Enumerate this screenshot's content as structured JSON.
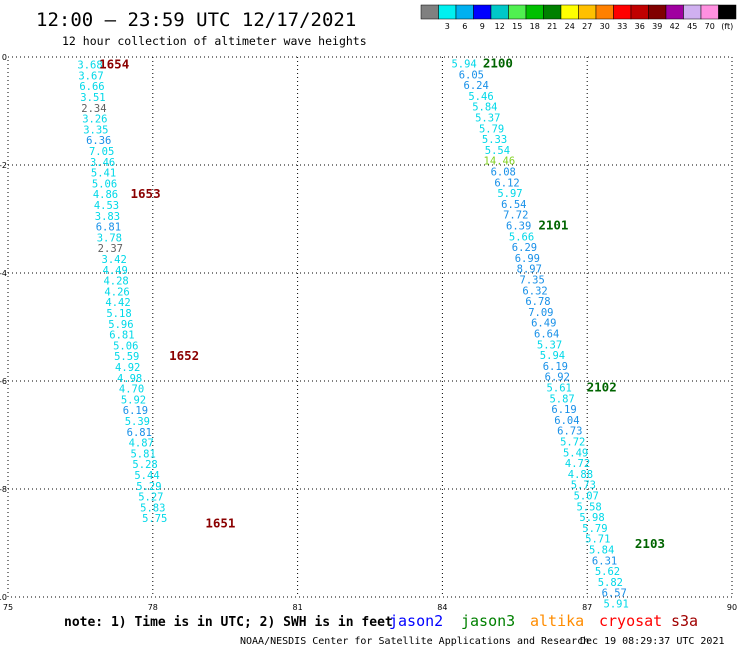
{
  "header": {
    "title": "12:00 – 23:59 UTC 12/17/2021",
    "subtitle": "12 hour collection of altimeter wave heights"
  },
  "colorbar": {
    "bins": [
      {
        "label": "",
        "color": "#808080"
      },
      {
        "label": "3",
        "color": "#00f0f0"
      },
      {
        "label": "6",
        "color": "#00b0f0"
      },
      {
        "label": "9",
        "color": "#0000ff"
      },
      {
        "label": "12",
        "color": "#00c8c8"
      },
      {
        "label": "15",
        "color": "#50f050"
      },
      {
        "label": "18",
        "color": "#00c000"
      },
      {
        "label": "21",
        "color": "#008000"
      },
      {
        "label": "24",
        "color": "#ffff00"
      },
      {
        "label": "27",
        "color": "#ffc000"
      },
      {
        "label": "30",
        "color": "#ff8000"
      },
      {
        "label": "33",
        "color": "#ff0000"
      },
      {
        "label": "36",
        "color": "#c00000"
      },
      {
        "label": "39",
        "color": "#800000"
      },
      {
        "label": "42",
        "color": "#a000a0"
      },
      {
        "label": "45",
        "color": "#d0b0f0"
      },
      {
        "label": "70",
        "color": "#ff90e0"
      },
      {
        "label": "(ft)",
        "color": "#000000"
      }
    ]
  },
  "chart_data": {
    "type": "scatter",
    "title": "12:00 – 23:59 UTC 12/17/2021",
    "subtitle": "12 hour collection of altimeter wave heights",
    "xlim": [
      75,
      90
    ],
    "ylim": [
      -10,
      0
    ],
    "xticks": [
      "75",
      "78",
      "81",
      "84",
      "87",
      "90"
    ],
    "yticks": [
      "0",
      "-2",
      "-4",
      "-6",
      "-8",
      "-10"
    ],
    "grid": true,
    "color_key": {
      "cyan": "#00d8e8",
      "blue": "#1890e8",
      "gray": "#606060",
      "lime": "#80d020"
    },
    "tracks": [
      {
        "name": "west",
        "points": [
          {
            "x": 76.7,
            "y": -0.14,
            "v": "3.68",
            "c": "cyan"
          },
          {
            "x": 76.72,
            "y": -0.34,
            "v": "3.67",
            "c": "cyan"
          },
          {
            "x": 76.74,
            "y": -0.54,
            "v": "6.66",
            "c": "cyan"
          },
          {
            "x": 76.76,
            "y": -0.74,
            "v": "3.51",
            "c": "cyan"
          },
          {
            "x": 76.78,
            "y": -0.94,
            "v": "2.34",
            "c": "gray"
          },
          {
            "x": 76.8,
            "y": -1.14,
            "v": "3.26",
            "c": "cyan"
          },
          {
            "x": 76.82,
            "y": -1.34,
            "v": "3.35",
            "c": "cyan"
          },
          {
            "x": 76.88,
            "y": -1.54,
            "v": "6.36",
            "c": "blue"
          },
          {
            "x": 76.94,
            "y": -1.74,
            "v": "7.05",
            "c": "cyan"
          },
          {
            "x": 76.96,
            "y": -1.94,
            "v": "3.46",
            "c": "cyan"
          },
          {
            "x": 76.98,
            "y": -2.14,
            "v": "5.41",
            "c": "cyan"
          },
          {
            "x": 77.0,
            "y": -2.34,
            "v": "5.06",
            "c": "cyan"
          },
          {
            "x": 77.02,
            "y": -2.54,
            "v": "4.86",
            "c": "cyan"
          },
          {
            "x": 77.04,
            "y": -2.74,
            "v": "4.53",
            "c": "cyan"
          },
          {
            "x": 77.06,
            "y": -2.94,
            "v": "3.83",
            "c": "cyan"
          },
          {
            "x": 77.08,
            "y": -3.14,
            "v": "6.81",
            "c": "blue"
          },
          {
            "x": 77.1,
            "y": -3.34,
            "v": "3.78",
            "c": "cyan"
          },
          {
            "x": 77.12,
            "y": -3.54,
            "v": "2.37",
            "c": "gray"
          },
          {
            "x": 77.2,
            "y": -3.74,
            "v": "3.42",
            "c": "cyan"
          },
          {
            "x": 77.22,
            "y": -3.94,
            "v": "4.49",
            "c": "cyan"
          },
          {
            "x": 77.24,
            "y": -4.14,
            "v": "4.28",
            "c": "cyan"
          },
          {
            "x": 77.26,
            "y": -4.34,
            "v": "4.26",
            "c": "cyan"
          },
          {
            "x": 77.28,
            "y": -4.54,
            "v": "4.42",
            "c": "cyan"
          },
          {
            "x": 77.3,
            "y": -4.74,
            "v": "5.18",
            "c": "cyan"
          },
          {
            "x": 77.34,
            "y": -4.94,
            "v": "5.96",
            "c": "cyan"
          },
          {
            "x": 77.36,
            "y": -5.14,
            "v": "6.81",
            "c": "cyan"
          },
          {
            "x": 77.44,
            "y": -5.34,
            "v": "5.06",
            "c": "cyan"
          },
          {
            "x": 77.46,
            "y": -5.54,
            "v": "5.59",
            "c": "cyan"
          },
          {
            "x": 77.48,
            "y": -5.74,
            "v": "4.92",
            "c": "cyan"
          },
          {
            "x": 77.52,
            "y": -5.94,
            "v": "4.98",
            "c": "cyan"
          },
          {
            "x": 77.56,
            "y": -6.14,
            "v": "4.70",
            "c": "cyan"
          },
          {
            "x": 77.6,
            "y": -6.34,
            "v": "5.92",
            "c": "cyan"
          },
          {
            "x": 77.64,
            "y": -6.54,
            "v": "6.19",
            "c": "blue"
          },
          {
            "x": 77.68,
            "y": -6.74,
            "v": "5.39",
            "c": "cyan"
          },
          {
            "x": 77.72,
            "y": -6.94,
            "v": "6.81",
            "c": "blue"
          },
          {
            "x": 77.76,
            "y": -7.14,
            "v": "4.87",
            "c": "cyan"
          },
          {
            "x": 77.8,
            "y": -7.34,
            "v": "5.81",
            "c": "cyan"
          },
          {
            "x": 77.84,
            "y": -7.54,
            "v": "5.28",
            "c": "cyan"
          },
          {
            "x": 77.88,
            "y": -7.74,
            "v": "5.44",
            "c": "cyan"
          },
          {
            "x": 77.92,
            "y": -7.94,
            "v": "5.29",
            "c": "cyan"
          },
          {
            "x": 77.96,
            "y": -8.14,
            "v": "5.27",
            "c": "cyan"
          },
          {
            "x": 78.0,
            "y": -8.34,
            "v": "5.83",
            "c": "cyan"
          },
          {
            "x": 78.04,
            "y": -8.54,
            "v": "5.75",
            "c": "cyan"
          }
        ]
      },
      {
        "name": "east",
        "points": [
          {
            "x": 84.45,
            "y": -0.12,
            "v": "5.94",
            "c": "cyan"
          },
          {
            "x": 84.6,
            "y": -0.32,
            "v": "6.05",
            "c": "blue"
          },
          {
            "x": 84.7,
            "y": -0.52,
            "v": "6.24",
            "c": "blue"
          },
          {
            "x": 84.8,
            "y": -0.72,
            "v": "5.46",
            "c": "cyan"
          },
          {
            "x": 84.88,
            "y": -0.92,
            "v": "5.84",
            "c": "cyan"
          },
          {
            "x": 84.94,
            "y": -1.12,
            "v": "5.37",
            "c": "cyan"
          },
          {
            "x": 85.02,
            "y": -1.32,
            "v": "5.79",
            "c": "cyan"
          },
          {
            "x": 85.08,
            "y": -1.52,
            "v": "5.33",
            "c": "cyan"
          },
          {
            "x": 85.14,
            "y": -1.72,
            "v": "5.54",
            "c": "cyan"
          },
          {
            "x": 85.18,
            "y": -1.92,
            "v": "14.46",
            "c": "lime"
          },
          {
            "x": 85.26,
            "y": -2.12,
            "v": "6.08",
            "c": "blue"
          },
          {
            "x": 85.34,
            "y": -2.32,
            "v": "6.12",
            "c": "blue"
          },
          {
            "x": 85.4,
            "y": -2.52,
            "v": "5.97",
            "c": "cyan"
          },
          {
            "x": 85.48,
            "y": -2.72,
            "v": "6.54",
            "c": "blue"
          },
          {
            "x": 85.52,
            "y": -2.92,
            "v": "7.72",
            "c": "blue"
          },
          {
            "x": 85.58,
            "y": -3.12,
            "v": "6.39",
            "c": "blue"
          },
          {
            "x": 85.64,
            "y": -3.32,
            "v": "5.66",
            "c": "cyan"
          },
          {
            "x": 85.7,
            "y": -3.52,
            "v": "6.29",
            "c": "blue"
          },
          {
            "x": 85.76,
            "y": -3.72,
            "v": "6.99",
            "c": "blue"
          },
          {
            "x": 85.8,
            "y": -3.92,
            "v": "8.97",
            "c": "blue"
          },
          {
            "x": 85.86,
            "y": -4.12,
            "v": "7.35",
            "c": "blue"
          },
          {
            "x": 85.92,
            "y": -4.32,
            "v": "6.32",
            "c": "blue"
          },
          {
            "x": 85.98,
            "y": -4.52,
            "v": "6.78",
            "c": "blue"
          },
          {
            "x": 86.04,
            "y": -4.72,
            "v": "7.09",
            "c": "blue"
          },
          {
            "x": 86.1,
            "y": -4.92,
            "v": "6.49",
            "c": "blue"
          },
          {
            "x": 86.16,
            "y": -5.12,
            "v": "6.64",
            "c": "blue"
          },
          {
            "x": 86.22,
            "y": -5.32,
            "v": "5.37",
            "c": "cyan"
          },
          {
            "x": 86.28,
            "y": -5.52,
            "v": "5.94",
            "c": "cyan"
          },
          {
            "x": 86.34,
            "y": -5.72,
            "v": "6.19",
            "c": "blue"
          },
          {
            "x": 86.38,
            "y": -5.92,
            "v": "6.92",
            "c": "blue"
          },
          {
            "x": 86.42,
            "y": -6.12,
            "v": "5.61",
            "c": "cyan"
          },
          {
            "x": 86.48,
            "y": -6.32,
            "v": "5.87",
            "c": "cyan"
          },
          {
            "x": 86.52,
            "y": -6.52,
            "v": "6.19",
            "c": "blue"
          },
          {
            "x": 86.58,
            "y": -6.72,
            "v": "6.04",
            "c": "blue"
          },
          {
            "x": 86.64,
            "y": -6.92,
            "v": "6.73",
            "c": "blue"
          },
          {
            "x": 86.7,
            "y": -7.12,
            "v": "5.72",
            "c": "cyan"
          },
          {
            "x": 86.76,
            "y": -7.32,
            "v": "5.49",
            "c": "cyan"
          },
          {
            "x": 86.8,
            "y": -7.52,
            "v": "4.72",
            "c": "cyan"
          },
          {
            "x": 86.86,
            "y": -7.72,
            "v": "4.88",
            "c": "cyan"
          },
          {
            "x": 86.92,
            "y": -7.92,
            "v": "5.73",
            "c": "cyan"
          },
          {
            "x": 86.98,
            "y": -8.12,
            "v": "5.07",
            "c": "cyan"
          },
          {
            "x": 87.04,
            "y": -8.32,
            "v": "5.58",
            "c": "cyan"
          },
          {
            "x": 87.1,
            "y": -8.52,
            "v": "5.98",
            "c": "cyan"
          },
          {
            "x": 87.16,
            "y": -8.72,
            "v": "5.79",
            "c": "cyan"
          },
          {
            "x": 87.22,
            "y": -8.92,
            "v": "5.71",
            "c": "cyan"
          },
          {
            "x": 87.3,
            "y": -9.12,
            "v": "5.84",
            "c": "cyan"
          },
          {
            "x": 87.36,
            "y": -9.32,
            "v": "6.31",
            "c": "blue"
          },
          {
            "x": 87.42,
            "y": -9.52,
            "v": "5.62",
            "c": "cyan"
          },
          {
            "x": 87.48,
            "y": -9.72,
            "v": "5.82",
            "c": "cyan"
          },
          {
            "x": 87.56,
            "y": -9.92,
            "v": "6.57",
            "c": "blue"
          },
          {
            "x": 87.6,
            "y": -10.12,
            "v": "5.91",
            "c": "cyan"
          }
        ]
      }
    ],
    "pass_labels": [
      {
        "x": 77.2,
        "y": -0.14,
        "text": "1654",
        "color": "#8b0000"
      },
      {
        "x": 77.85,
        "y": -2.54,
        "text": "1653",
        "color": "#8b0000"
      },
      {
        "x": 78.65,
        "y": -5.54,
        "text": "1652",
        "color": "#8b0000"
      },
      {
        "x": 79.4,
        "y": -8.64,
        "text": "1651",
        "color": "#8b0000"
      },
      {
        "x": 85.15,
        "y": -0.12,
        "text": "2100",
        "color": "#006400"
      },
      {
        "x": 86.3,
        "y": -3.12,
        "text": "2101",
        "color": "#006400"
      },
      {
        "x": 87.3,
        "y": -6.12,
        "text": "2102",
        "color": "#006400"
      },
      {
        "x": 88.3,
        "y": -9.02,
        "text": "2103",
        "color": "#006400"
      }
    ]
  },
  "legend": {
    "note": "note: 1) Time is in UTC; 2) SWH is in feet",
    "satellites": [
      {
        "name": "jason2",
        "color": "#0000ff"
      },
      {
        "name": "jason3",
        "color": "#008000"
      },
      {
        "name": "altika",
        "color": "#ff8c00"
      },
      {
        "name": "cryosat",
        "color": "#ff0000"
      },
      {
        "name": "s3a",
        "color": "#a00000"
      }
    ]
  },
  "footer": {
    "credit": "NOAA/NESDIS Center for Satellite Applications and Research",
    "timestamp": "Dec 19 08:29:37 UTC 2021"
  }
}
